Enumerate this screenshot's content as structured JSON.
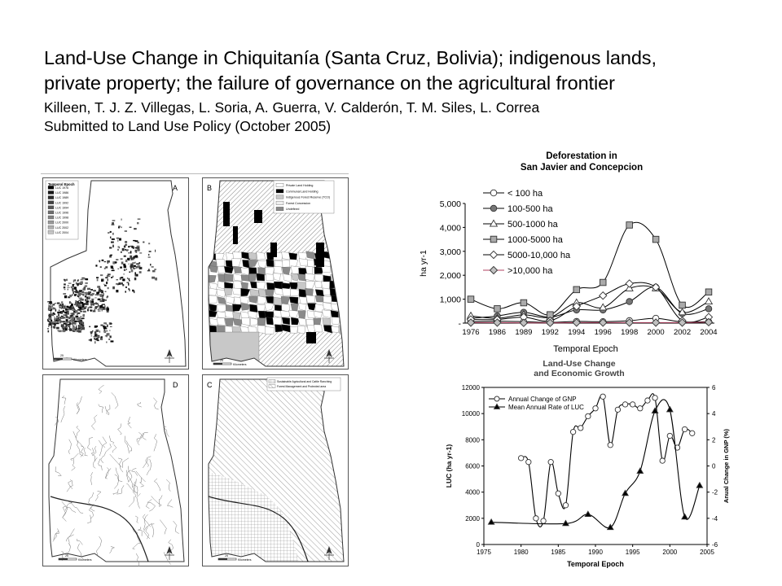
{
  "header": {
    "title_line1": "Land-Use Change in Chiquitanía (Santa Cruz, Bolivia); indigenous lands,",
    "title_line2": "private property; the failure of governance on the agricultural frontier",
    "authors": "Killeen, T. J. Z. Villegas, L. Soria, A. Guerra, V. Calderón, T. M. Siles, L. Correa",
    "submitted": "Submitted to Land Use Policy (October 2005)"
  },
  "maps": {
    "A": {
      "letter": "A",
      "legend_title": "Temporal Epoch",
      "legend": [
        "LUC 1976",
        "LUC 1986",
        "LUC 1989",
        "LUC 1992",
        "LUC 1994",
        "LUC 1996",
        "LUC 1998",
        "LUC 2000",
        "LUC 2002",
        "LUC 2004"
      ],
      "scale_value": "25",
      "scale_unit": "Kilometers"
    },
    "B": {
      "letter": "B",
      "legend": [
        "Private Land Holding",
        "Communal Land Holding",
        "Indigenous Forest Reserve (TCO)",
        "Forest Concession",
        "Undefined"
      ],
      "scale_value": "25",
      "scale_unit": "Kilometers"
    },
    "D": {
      "letter": "D",
      "scale_value": "25",
      "scale_unit": "Kilometers"
    },
    "C": {
      "letter": "C",
      "legend": [
        "Sustainable Agricultural and Cattle Ranching",
        "Forest Management and Protected area"
      ],
      "scale_value": "25",
      "scale_unit": "Kilometers"
    },
    "colors": {
      "luc": [
        "#000000",
        "#161616",
        "#2c2c2c",
        "#424242",
        "#585858",
        "#6e6e6e",
        "#848484",
        "#9a9a9a",
        "#b0b0b0",
        "#c6c6c6"
      ],
      "private": "#ffffff",
      "communal": "#000000",
      "tco": "#c8c8c8",
      "concession": "#efefef",
      "undefined": "#8a8a8a"
    }
  },
  "chart_data": [
    {
      "type": "line",
      "title": "Deforestation in\nSan Javier and Concepcion",
      "xlabel": "Temporal Epoch",
      "ylabel": "ha yr-1",
      "categories": [
        "1976",
        "1986",
        "1989",
        "1992",
        "1994",
        "1996",
        "1998",
        "2000",
        "2002",
        "2004"
      ],
      "ylim": [
        0,
        5000
      ],
      "yticks": [
        "5,000",
        "4,000",
        "3,000",
        "2,000",
        "1,000",
        "-"
      ],
      "legend_position": "top-left",
      "series": [
        {
          "name": "< 100  ha",
          "marker": "circle-open",
          "values": [
            60,
            80,
            60,
            30,
            70,
            60,
            100,
            200,
            50,
            60
          ]
        },
        {
          "name": "100-500 ha",
          "marker": "circle-filled",
          "values": [
            200,
            300,
            450,
            250,
            550,
            550,
            900,
            1500,
            400,
            600
          ]
        },
        {
          "name": "500-1000 ha",
          "marker": "triangle-open",
          "values": [
            300,
            200,
            350,
            250,
            850,
            650,
            1450,
            1450,
            450,
            900
          ]
        },
        {
          "name": "1000-5000 ha",
          "marker": "square-filled",
          "values": [
            1000,
            600,
            850,
            350,
            1400,
            1700,
            4100,
            3500,
            750,
            1300
          ]
        },
        {
          "name": "5000-10,000 ha",
          "marker": "diamond-open",
          "values": [
            150,
            150,
            250,
            100,
            700,
            1150,
            1650,
            1500,
            100,
            250
          ]
        },
        {
          "name": ">10,000 ha",
          "marker": "diamond-filled",
          "values": [
            20,
            20,
            10,
            10,
            20,
            20,
            20,
            20,
            20,
            40
          ]
        }
      ]
    },
    {
      "type": "line",
      "title": "Land-Use Change\nand Economic Growth",
      "xlabel": "Temporal Epoch",
      "ylabel": "LUC (ha yr-1)",
      "y2label": "Anual Change in GNP (%)",
      "xlim": [
        1975,
        2005
      ],
      "xticks": [
        1975,
        1980,
        1985,
        1990,
        1995,
        2000,
        2005
      ],
      "ylim": [
        0,
        12000
      ],
      "yticks": [
        0,
        2000,
        4000,
        6000,
        8000,
        10000,
        12000
      ],
      "y2lim": [
        -6,
        6
      ],
      "y2ticks": [
        -6,
        -4,
        -2,
        0,
        2,
        4,
        6
      ],
      "legend_position": "top-left",
      "series": [
        {
          "name": "Annual Change of GNP",
          "marker": "circle-open",
          "axis": "right",
          "x": [
            1980,
            1981,
            1982,
            1983,
            1984,
            1985,
            1986,
            1987,
            1988,
            1989,
            1990,
            1991,
            1992,
            1993,
            1994,
            1995,
            1996,
            1997,
            1998,
            1999,
            2000,
            2001,
            2002,
            2003
          ],
          "values": [
            0.6,
            0.3,
            -4.0,
            -4.2,
            0.3,
            -2.1,
            -3.0,
            2.6,
            2.9,
            3.8,
            4.4,
            5.3,
            1.6,
            4.3,
            4.7,
            4.7,
            4.4,
            5.0,
            5.2,
            0.4,
            2.3,
            1.4,
            2.8,
            2.5
          ]
        },
        {
          "name": "Mean Annual Rate of LUC",
          "marker": "triangle-filled",
          "axis": "left",
          "x": [
            1976,
            1986,
            1989,
            1992,
            1994,
            1996,
            1998,
            2000,
            2002,
            2004
          ],
          "values": [
            1700,
            1600,
            2300,
            1300,
            3900,
            5600,
            10200,
            10300,
            2100,
            4500
          ]
        }
      ]
    }
  ]
}
